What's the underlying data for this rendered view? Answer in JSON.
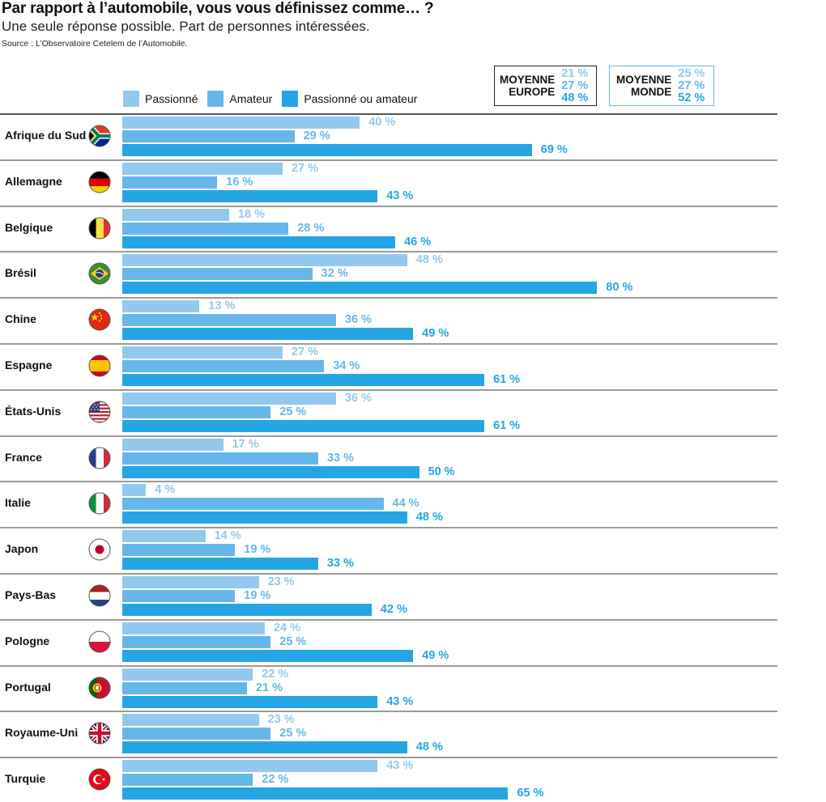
{
  "colors": {
    "passionne": "#93C9EE",
    "amateur": "#67B6EA",
    "passionne_ou_amateur": "#26A5E4"
  },
  "header": {
    "title": "Par rapport à l’automobile, vous vous définissez comme… ?",
    "subtitle": "Une seule réponse possible. Part de personnes intéressées.",
    "source": "Source : L’Observatoire Cetelem de l’Automobile."
  },
  "legend": [
    {
      "label": "Passionné",
      "color": "#93C9EE"
    },
    {
      "label": "Amateur",
      "color": "#67B6EA"
    },
    {
      "label": "Passionné ou amateur",
      "color": "#26A5E4"
    }
  ],
  "averages": {
    "europe": {
      "line1": "MOYENNE",
      "line2": "EUROPE",
      "values": [
        "21 %",
        "27 %",
        "48 %"
      ]
    },
    "monde": {
      "line1": "MOYENNE",
      "line2": "MONDE",
      "values": [
        "25 %",
        "27 %",
        "52 %"
      ]
    }
  },
  "chart_data": {
    "type": "bar",
    "orientation": "horizontal",
    "title": "Par rapport à l’automobile, vous vous définissez comme… ?",
    "subtitle": "Une seule réponse possible. Part de personnes intéressées.",
    "unit": "%",
    "xlim": [
      0,
      100
    ],
    "grid": false,
    "legend_position": "top",
    "categories": [
      "Afrique du Sud",
      "Allemagne",
      "Belgique",
      "Brésil",
      "Chine",
      "Espagne",
      "États-Unis",
      "France",
      "Italie",
      "Japon",
      "Pays-Bas",
      "Pologne",
      "Portugal",
      "Royaume-Uni",
      "Turquie"
    ],
    "flags": [
      "south-africa-flag-icon",
      "germany-flag-icon",
      "belgium-flag-icon",
      "brazil-flag-icon",
      "china-flag-icon",
      "spain-flag-icon",
      "usa-flag-icon",
      "france-flag-icon",
      "italy-flag-icon",
      "japan-flag-icon",
      "netherlands-flag-icon",
      "poland-flag-icon",
      "portugal-flag-icon",
      "uk-flag-icon",
      "turkey-flag-icon"
    ],
    "series": [
      {
        "name": "Passionné",
        "values": [
          40,
          27,
          18,
          48,
          13,
          27,
          36,
          17,
          4,
          14,
          23,
          24,
          22,
          23,
          43
        ]
      },
      {
        "name": "Amateur",
        "values": [
          29,
          16,
          28,
          32,
          36,
          34,
          25,
          33,
          44,
          19,
          19,
          25,
          21,
          25,
          22
        ]
      },
      {
        "name": "Passionné ou amateur",
        "values": [
          69,
          43,
          46,
          80,
          49,
          61,
          61,
          50,
          48,
          33,
          42,
          49,
          43,
          48,
          65
        ]
      }
    ],
    "averages": {
      "Moyenne Europe": [
        21,
        27,
        48
      ],
      "Moyenne Monde": [
        25,
        27,
        52
      ]
    }
  }
}
